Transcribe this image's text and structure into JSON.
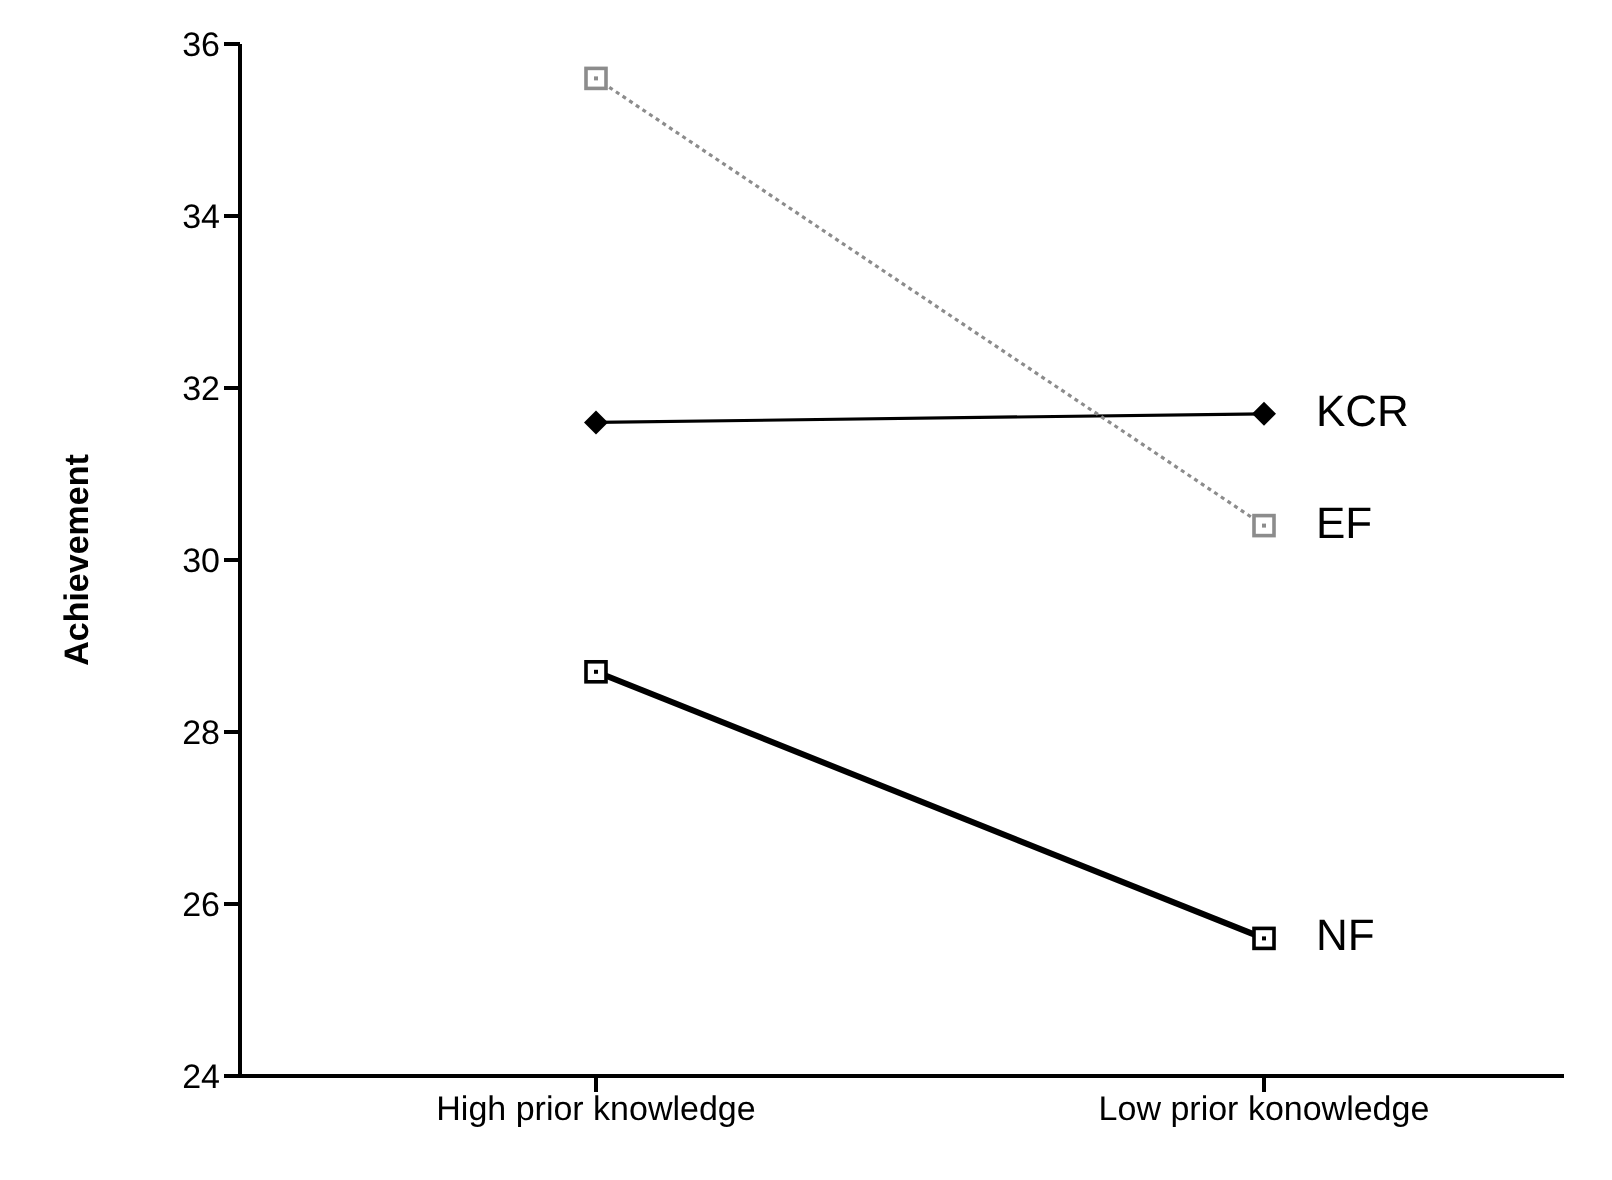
{
  "chart_data": {
    "type": "line",
    "ylabel": "Achievement",
    "categories": [
      "High prior knowledge",
      "Low prior konowledge"
    ],
    "series": [
      {
        "name": "KCR",
        "color": "#000000",
        "values": [
          31.6,
          31.7
        ],
        "marker": "diamond",
        "line_style": "solid"
      },
      {
        "name": "EF",
        "color": "#8c8c8c",
        "values": [
          35.6,
          30.4
        ],
        "marker": "square",
        "line_style": "dotted"
      },
      {
        "name": "NF",
        "color": "#000000",
        "values": [
          28.7,
          25.6
        ],
        "marker": "square",
        "line_style": "solid"
      }
    ],
    "ylim": [
      24,
      36
    ],
    "yticks": [
      24,
      26,
      28,
      30,
      32,
      34,
      36
    ],
    "grid": false,
    "legend": false
  }
}
